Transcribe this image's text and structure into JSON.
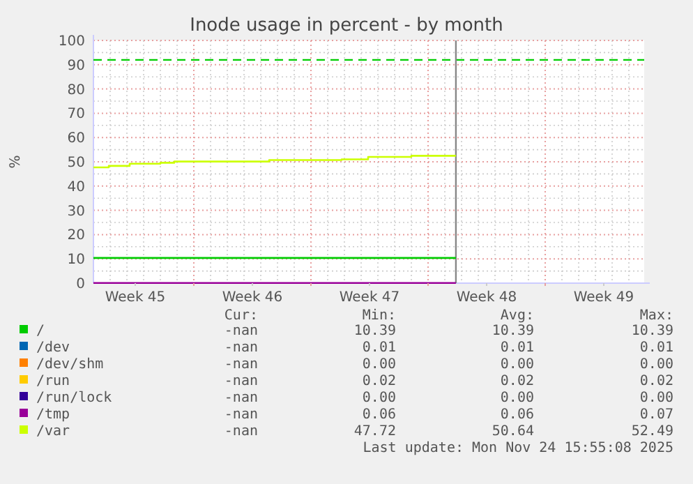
{
  "chart_data": {
    "type": "step",
    "title": "Inode usage in percent - by month",
    "ylabel": "%",
    "xlim": [
      "2025-11-03T00:00",
      "2025-12-05T22:00"
    ],
    "xticks": [
      {
        "value": "2025-11-05T12:00",
        "label": "Week 45"
      },
      {
        "value": "2025-11-09",
        "label": null
      },
      {
        "value": "2025-11-12T12:00",
        "label": "Week 46"
      },
      {
        "value": "2025-11-16",
        "label": null
      },
      {
        "value": "2025-11-19T12:00",
        "label": "Week 47"
      },
      {
        "value": "2025-11-23",
        "label": null
      },
      {
        "value": "2025-11-26T12:00",
        "label": "Week 48"
      },
      {
        "value": "2025-11-30",
        "label": null
      },
      {
        "value": "2025-12-03T12:00",
        "label": "Week 49"
      }
    ],
    "ylim": [
      0,
      100
    ],
    "yticks": [
      0,
      10,
      20,
      30,
      40,
      50,
      60,
      70,
      80,
      90,
      100
    ],
    "grid": true,
    "legend": "bottom",
    "marker": "none",
    "line_style": "solid",
    "series": [
      {
        "name": "/",
        "color": "#00cc00",
        "x": [
          "2025-11-03T00:00",
          "2025-11-24T15:55"
        ],
        "values": [
          10.39,
          10.39
        ]
      },
      {
        "name": "/dev",
        "color": "#0066b3"
      },
      {
        "name": "/dev/shm",
        "color": "#ff8000"
      },
      {
        "name": "/run",
        "color": "#ffcc00"
      },
      {
        "name": "/run/lock",
        "color": "#330099"
      },
      {
        "name": "/tmp",
        "color": "#990099",
        "x": [
          "2025-11-03T00:00",
          "2025-11-24T15:55"
        ],
        "values": [
          0.06,
          0.06
        ]
      },
      {
        "name": "/var",
        "color": "#ccff00",
        "x": [
          "2025-11-03T00:00",
          "2025-11-03T22:00",
          "2025-11-05T04:00",
          "2025-11-07T00:00",
          "2025-11-07T20:00",
          "2025-11-13T12:00",
          "2025-11-17T20:00",
          "2025-11-19T10:00",
          "2025-11-22T00:00",
          "2025-11-24T15:55"
        ],
        "values": [
          47.72,
          48.3,
          49.2,
          49.6,
          50.1,
          50.7,
          51.0,
          52.0,
          52.49,
          52.49
        ]
      }
    ],
    "ref_lines": [
      {
        "axis": "y",
        "value": 92,
        "color": "#00cc00",
        "line_style": "dashed"
      },
      {
        "axis": "x",
        "value": "2025-11-24T15:55",
        "color": "#888888",
        "line_style": "solid"
      }
    ],
    "annotations": [
      "Cur:",
      "Min:",
      "Avg:",
      "Max:",
      "-nan",
      "10.39",
      "10.39",
      "10.39",
      "-nan",
      "0.01",
      "0.01",
      "0.01",
      "-nan",
      "0.00",
      "0.00",
      "0.00",
      "-nan",
      "0.02",
      "0.02",
      "0.02",
      "-nan",
      "0.00",
      "0.00",
      "0.00",
      "-nan",
      "0.06",
      "0.06",
      "0.07",
      "-nan",
      "47.72",
      "50.64",
      "52.49",
      "Last update: Mon Nov 24 15:55:08 2025"
    ]
  }
}
